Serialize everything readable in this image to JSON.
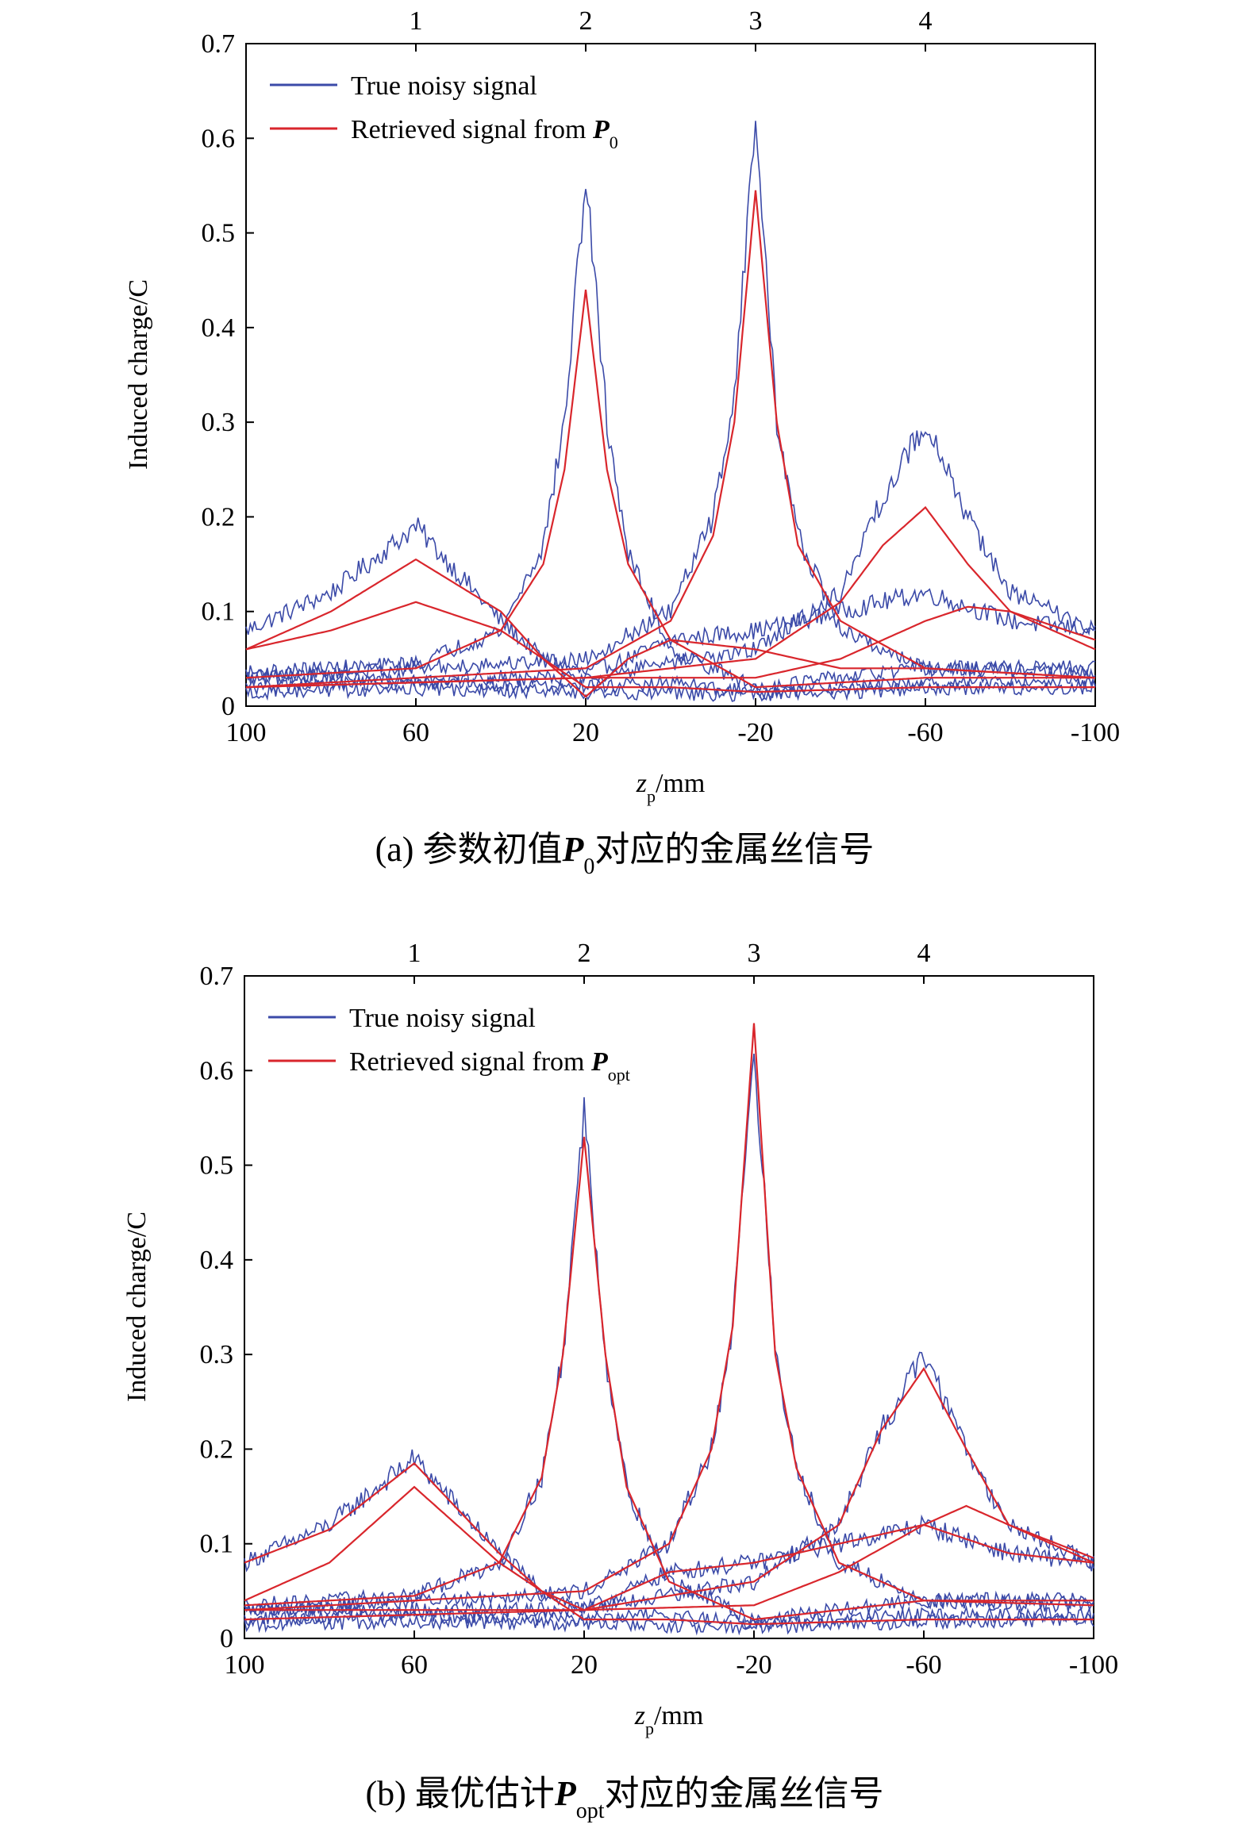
{
  "panels": [
    {
      "caption": {
        "prefix": "(a)",
        "text_before": "参数初值",
        "symbol": "P",
        "subscript": "0",
        "text_after": "对应的金属丝信号"
      },
      "legend": [
        {
          "label": "True noisy signal",
          "color": "#3b4aa8"
        },
        {
          "label": "Retrieved signal from ",
          "symbol": "P",
          "subscript": "0",
          "color": "#d9262c"
        }
      ],
      "chart_data": {
        "type": "line",
        "xlabel_var": "z",
        "xlabel_sub": "p",
        "xlabel_unit": "/mm",
        "ylabel": "Induced charge/C",
        "xlim": [
          100,
          -100
        ],
        "ylim": [
          0,
          0.7
        ],
        "x_ticks": [
          100,
          60,
          20,
          -20,
          -60,
          -100
        ],
        "x_tick_labels": [
          "100",
          "60",
          "20",
          "-20",
          "-60",
          "-100"
        ],
        "y_ticks": [
          0,
          0.1,
          0.2,
          0.3,
          0.4,
          0.5,
          0.6,
          0.7
        ],
        "y_tick_labels": [
          "0",
          "0.1",
          "0.2",
          "0.3",
          "0.4",
          "0.5",
          "0.6",
          "0.7"
        ],
        "top_ticks": [
          60,
          20,
          -20,
          -60
        ],
        "top_tick_labels": [
          "1",
          "2",
          "3",
          "4"
        ],
        "grid": false,
        "legend_position": "top-left",
        "noise_amplitude": 0.012,
        "true_noisy_signal": [
          {
            "x": [
              100,
              80,
              60,
              40,
              30,
              20,
              10,
              0,
              -20,
              -40,
              -60,
              -80,
              -100
            ],
            "y": [
              0.08,
              0.12,
              0.19,
              0.09,
              0.05,
              0.035,
              0.05,
              0.07,
              0.08,
              0.1,
              0.12,
              0.09,
              0.08
            ]
          },
          {
            "x": [
              100,
              60,
              40,
              30,
              25,
              20,
              15,
              10,
              0,
              -20,
              -60,
              -100
            ],
            "y": [
              0.035,
              0.045,
              0.08,
              0.17,
              0.3,
              0.56,
              0.3,
              0.16,
              0.06,
              0.02,
              0.04,
              0.04
            ]
          },
          {
            "x": [
              100,
              60,
              20,
              0,
              -10,
              -15,
              -20,
              -25,
              -30,
              -40,
              -60,
              -100
            ],
            "y": [
              0.03,
              0.04,
              0.05,
              0.1,
              0.2,
              0.33,
              0.62,
              0.3,
              0.18,
              0.08,
              0.04,
              0.035
            ]
          },
          {
            "x": [
              100,
              60,
              20,
              -20,
              -40,
              -50,
              -60,
              -70,
              -80,
              -100
            ],
            "y": [
              0.03,
              0.03,
              0.03,
              0.06,
              0.12,
              0.22,
              0.3,
              0.2,
              0.12,
              0.08
            ]
          },
          {
            "x": [
              100,
              60,
              20,
              0,
              -20,
              -60,
              -100
            ],
            "y": [
              0.02,
              0.025,
              0.02,
              0.025,
              0.015,
              0.025,
              0.025
            ]
          },
          {
            "x": [
              100,
              60,
              20,
              -20,
              -60,
              -100
            ],
            "y": [
              0.015,
              0.018,
              0.015,
              0.012,
              0.018,
              0.02
            ]
          }
        ],
        "retrieved_signal": [
          {
            "x": [
              100,
              80,
              60,
              40,
              30,
              20,
              10,
              0,
              -20,
              -40,
              -60,
              -100
            ],
            "y": [
              0.06,
              0.1,
              0.155,
              0.1,
              0.05,
              0.01,
              0.05,
              0.07,
              0.06,
              0.04,
              0.04,
              0.03
            ]
          },
          {
            "x": [
              100,
              80,
              60,
              40,
              20,
              0,
              -20,
              -60,
              -100
            ],
            "y": [
              0.06,
              0.08,
              0.11,
              0.08,
              0.02,
              0.02,
              0.015,
              0.02,
              0.02
            ]
          },
          {
            "x": [
              100,
              60,
              40,
              30,
              25,
              20,
              15,
              10,
              0,
              -20,
              -60,
              -100
            ],
            "y": [
              0.03,
              0.04,
              0.08,
              0.15,
              0.25,
              0.44,
              0.25,
              0.15,
              0.07,
              0.02,
              0.03,
              0.03
            ]
          },
          {
            "x": [
              100,
              60,
              20,
              0,
              -10,
              -15,
              -20,
              -25,
              -30,
              -40,
              -60,
              -100
            ],
            "y": [
              0.02,
              0.03,
              0.04,
              0.09,
              0.18,
              0.3,
              0.545,
              0.3,
              0.17,
              0.09,
              0.04,
              0.03
            ]
          },
          {
            "x": [
              100,
              60,
              20,
              -20,
              -40,
              -50,
              -60,
              -70,
              -80,
              -100
            ],
            "y": [
              0.02,
              0.025,
              0.03,
              0.05,
              0.11,
              0.17,
              0.21,
              0.15,
              0.1,
              0.06
            ]
          },
          {
            "x": [
              100,
              60,
              20,
              -20,
              -40,
              -60,
              -70,
              -80,
              -100
            ],
            "y": [
              0.02,
              0.025,
              0.03,
              0.03,
              0.05,
              0.09,
              0.105,
              0.1,
              0.07
            ]
          }
        ]
      }
    },
    {
      "caption": {
        "prefix": "(b)",
        "text_before": "最优估计",
        "symbol": "P",
        "subscript": "opt",
        "text_after": "对应的金属丝信号"
      },
      "legend": [
        {
          "label": "True noisy signal",
          "color": "#3b4aa8"
        },
        {
          "label": "Retrieved signal from ",
          "symbol": "P",
          "subscript": "opt",
          "color": "#d9262c"
        }
      ],
      "chart_data": {
        "type": "line",
        "xlabel_var": "z",
        "xlabel_sub": "p",
        "xlabel_unit": "/mm",
        "ylabel": "Induced charge/C",
        "xlim": [
          100,
          -100
        ],
        "ylim": [
          0,
          0.7
        ],
        "x_ticks": [
          100,
          60,
          20,
          -20,
          -60,
          -100
        ],
        "x_tick_labels": [
          "100",
          "60",
          "20",
          "-20",
          "-60",
          "-100"
        ],
        "y_ticks": [
          0,
          0.1,
          0.2,
          0.3,
          0.4,
          0.5,
          0.6,
          0.7
        ],
        "y_tick_labels": [
          "0",
          "0.1",
          "0.2",
          "0.3",
          "0.4",
          "0.5",
          "0.6",
          "0.7"
        ],
        "top_ticks": [
          60,
          20,
          -20,
          -60
        ],
        "top_tick_labels": [
          "1",
          "2",
          "3",
          "4"
        ],
        "grid": false,
        "legend_position": "top-left",
        "noise_amplitude": 0.012,
        "true_noisy_signal": [
          {
            "x": [
              100,
              80,
              60,
              40,
              30,
              20,
              10,
              0,
              -20,
              -40,
              -60,
              -80,
              -100
            ],
            "y": [
              0.08,
              0.12,
              0.19,
              0.09,
              0.05,
              0.03,
              0.05,
              0.07,
              0.08,
              0.1,
              0.12,
              0.09,
              0.08
            ]
          },
          {
            "x": [
              100,
              60,
              40,
              30,
              25,
              20,
              15,
              10,
              0,
              -20,
              -60,
              -100
            ],
            "y": [
              0.035,
              0.045,
              0.08,
              0.17,
              0.3,
              0.56,
              0.3,
              0.16,
              0.06,
              0.02,
              0.04,
              0.04
            ]
          },
          {
            "x": [
              100,
              60,
              20,
              0,
              -10,
              -15,
              -20,
              -25,
              -30,
              -40,
              -60,
              -100
            ],
            "y": [
              0.03,
              0.04,
              0.05,
              0.1,
              0.2,
              0.33,
              0.63,
              0.3,
              0.18,
              0.08,
              0.04,
              0.035
            ]
          },
          {
            "x": [
              100,
              60,
              20,
              -20,
              -40,
              -50,
              -60,
              -70,
              -80,
              -100
            ],
            "y": [
              0.03,
              0.03,
              0.03,
              0.06,
              0.12,
              0.22,
              0.3,
              0.2,
              0.12,
              0.08
            ]
          },
          {
            "x": [
              100,
              60,
              20,
              0,
              -20,
              -60,
              -100
            ],
            "y": [
              0.02,
              0.025,
              0.02,
              0.025,
              0.015,
              0.025,
              0.025
            ]
          },
          {
            "x": [
              100,
              60,
              20,
              -20,
              -60,
              -100
            ],
            "y": [
              0.015,
              0.018,
              0.015,
              0.012,
              0.018,
              0.02
            ]
          }
        ],
        "retrieved_signal": [
          {
            "x": [
              100,
              80,
              60,
              40,
              30,
              20,
              10,
              0,
              -20,
              -40,
              -60,
              -80,
              -100
            ],
            "y": [
              0.08,
              0.115,
              0.185,
              0.09,
              0.05,
              0.03,
              0.05,
              0.07,
              0.08,
              0.1,
              0.12,
              0.09,
              0.08
            ]
          },
          {
            "x": [
              100,
              80,
              60,
              40,
              20,
              0,
              -20,
              -60,
              -100
            ],
            "y": [
              0.04,
              0.08,
              0.16,
              0.08,
              0.02,
              0.02,
              0.015,
              0.02,
              0.02
            ]
          },
          {
            "x": [
              100,
              60,
              40,
              30,
              25,
              20,
              15,
              10,
              0,
              -20,
              -60,
              -100
            ],
            "y": [
              0.035,
              0.045,
              0.08,
              0.17,
              0.3,
              0.53,
              0.3,
              0.16,
              0.06,
              0.02,
              0.04,
              0.04
            ]
          },
          {
            "x": [
              100,
              60,
              20,
              0,
              -10,
              -15,
              -20,
              -25,
              -30,
              -40,
              -60,
              -100
            ],
            "y": [
              0.03,
              0.04,
              0.05,
              0.1,
              0.2,
              0.33,
              0.65,
              0.3,
              0.18,
              0.08,
              0.04,
              0.035
            ]
          },
          {
            "x": [
              100,
              60,
              20,
              -20,
              -40,
              -50,
              -60,
              -70,
              -80,
              -100
            ],
            "y": [
              0.03,
              0.03,
              0.03,
              0.06,
              0.12,
              0.22,
              0.285,
              0.2,
              0.12,
              0.085
            ]
          },
          {
            "x": [
              100,
              60,
              20,
              -20,
              -40,
              -60,
              -70,
              -80,
              -100
            ],
            "y": [
              0.02,
              0.025,
              0.03,
              0.035,
              0.07,
              0.12,
              0.14,
              0.12,
              0.08
            ]
          }
        ]
      }
    }
  ]
}
